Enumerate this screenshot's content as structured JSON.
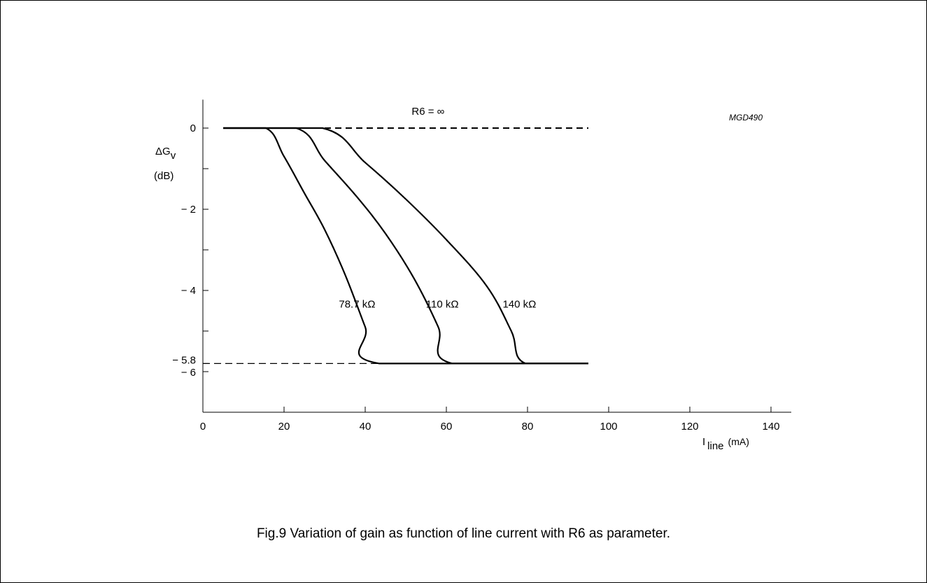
{
  "caption": "Fig.9  Variation of gain as function of line current with R6 as parameter.",
  "figure_code": "MGD490",
  "chart_data": {
    "type": "line",
    "xlabel": {
      "main": "I",
      "sub": "line",
      "unit": "(mA)"
    },
    "ylabel": {
      "main": "ΔG",
      "sub": "v",
      "unit": "(dB)"
    },
    "xlim": [
      0,
      145
    ],
    "ylim": [
      -7,
      0.7
    ],
    "x_ticks": [
      {
        "value": 0,
        "label": "0"
      },
      {
        "value": 20,
        "label": "20"
      },
      {
        "value": 40,
        "label": "40"
      },
      {
        "value": 60,
        "label": "60"
      },
      {
        "value": 80,
        "label": "80"
      },
      {
        "value": 100,
        "label": "100"
      },
      {
        "value": 120,
        "label": "120"
      },
      {
        "value": 140,
        "label": "140"
      }
    ],
    "y_ticks": [
      {
        "value": 0,
        "label": "0"
      },
      {
        "value": -1,
        "label": ""
      },
      {
        "value": -2,
        "label": "− 2"
      },
      {
        "value": -3,
        "label": ""
      },
      {
        "value": -4,
        "label": "− 4"
      },
      {
        "value": -5,
        "label": ""
      },
      {
        "value": -5.8,
        "label": "− 5.8"
      },
      {
        "value": -6,
        "label": "− 6"
      }
    ],
    "series": [
      {
        "name": "78.7 kΩ",
        "label_at": [
          38,
          -4.42
        ],
        "points": [
          [
            5,
            0
          ],
          [
            15.5,
            0
          ],
          [
            20,
            -0.7
          ],
          [
            25,
            -1.6
          ],
          [
            30,
            -2.5
          ],
          [
            35,
            -3.6
          ],
          [
            40,
            -4.9
          ],
          [
            43.5,
            -5.8
          ],
          [
            95,
            -5.8
          ]
        ]
      },
      {
        "name": "110 kΩ",
        "label_at": [
          59,
          -4.42
        ],
        "points": [
          [
            5,
            0
          ],
          [
            23,
            0
          ],
          [
            30,
            -0.8
          ],
          [
            38,
            -1.7
          ],
          [
            45,
            -2.6
          ],
          [
            52,
            -3.7
          ],
          [
            58,
            -4.9
          ],
          [
            61.5,
            -5.8
          ],
          [
            95,
            -5.8
          ]
        ]
      },
      {
        "name": "140 kΩ",
        "label_at": [
          78,
          -4.42
        ],
        "points": [
          [
            5,
            0
          ],
          [
            29.5,
            0
          ],
          [
            40,
            -0.85
          ],
          [
            50,
            -1.75
          ],
          [
            60,
            -2.75
          ],
          [
            70,
            -3.9
          ],
          [
            76,
            -5.0
          ],
          [
            79.5,
            -5.8
          ],
          [
            95,
            -5.8
          ]
        ]
      }
    ],
    "reference_lines": [
      {
        "name": "R6 = ∞",
        "points": [
          [
            30,
            0
          ],
          [
            95,
            0
          ]
        ],
        "style": "dashed",
        "label_at": [
          55.5,
          0.33
        ]
      },
      {
        "name": "-5.8 level",
        "points": [
          [
            0,
            -5.8
          ],
          [
            43.5,
            -5.8
          ]
        ],
        "style": "dashed"
      }
    ]
  }
}
